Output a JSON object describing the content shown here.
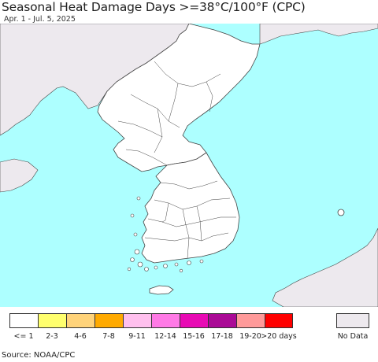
{
  "title": "Seasonal Heat Damage Days >=38°C/100°F (CPC)",
  "subtitle": "Apr. 1 - Jul. 5, 2025",
  "source": "Source: NOAA/CPC",
  "colors": {
    "sea": "#ADFFFF",
    "foreign_land": "#EDE9EE",
    "korea_land": "#FFFFFF",
    "border": "#444444"
  },
  "legend": {
    "items": [
      {
        "label": "<= 1",
        "color": "#FFFFFF"
      },
      {
        "label": "2-3",
        "color": "#FFFF6E"
      },
      {
        "label": "4-6",
        "color": "#FFD37A"
      },
      {
        "label": "7-8",
        "color": "#FFAA00"
      },
      {
        "label": "9-11",
        "color": "#FFC0EE"
      },
      {
        "label": "12-14",
        "color": "#FF7AE6"
      },
      {
        "label": "15-16",
        "color": "#E80AB4"
      },
      {
        "label": "17-18",
        "color": "#AA0A96"
      },
      {
        "label": "19-20",
        "color": "#FF9A9A"
      },
      {
        "label": ">20 days",
        "color": "#FF0000"
      }
    ],
    "no_data": {
      "label": "No Data",
      "color": "#EDE9EE"
    }
  }
}
